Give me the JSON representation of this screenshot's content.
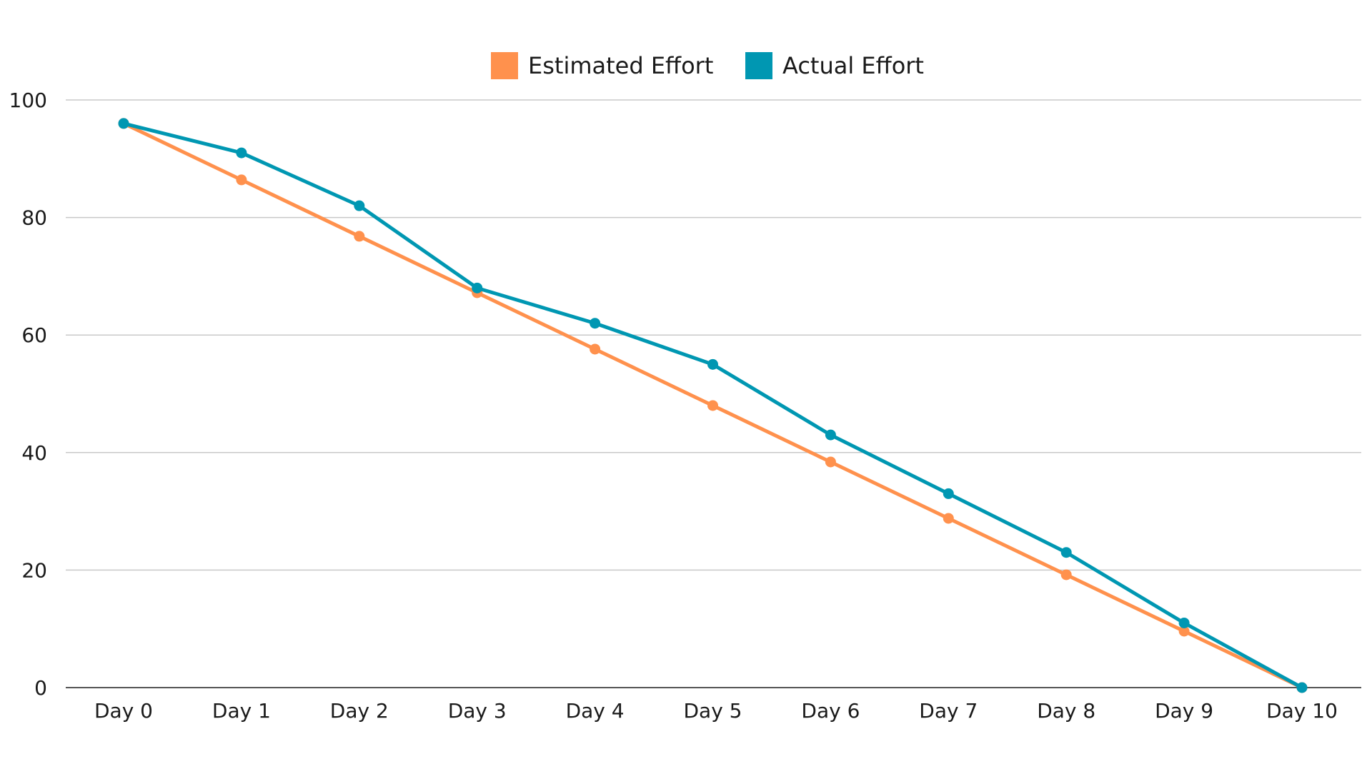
{
  "chart_data": {
    "type": "line",
    "title": "",
    "xlabel": "",
    "ylabel": "",
    "categories": [
      "Day 0",
      "Day 1",
      "Day 2",
      "Day 3",
      "Day 4",
      "Day 5",
      "Day 6",
      "Day 7",
      "Day 8",
      "Day 9",
      "Day 10"
    ],
    "ylim": [
      0,
      100
    ],
    "yticks": [
      0,
      20,
      40,
      60,
      80,
      100
    ],
    "grid": true,
    "legend_position": "top-center",
    "series": [
      {
        "name": "Estimated Effort",
        "color": "#FF914D",
        "values": [
          96,
          86.4,
          76.8,
          67.2,
          57.6,
          48,
          38.4,
          28.8,
          19.2,
          9.6,
          0
        ]
      },
      {
        "name": "Actual Effort",
        "color": "#0097B2",
        "values": [
          96,
          91,
          82,
          68,
          62,
          55,
          43,
          33,
          23,
          11,
          0
        ]
      }
    ]
  }
}
